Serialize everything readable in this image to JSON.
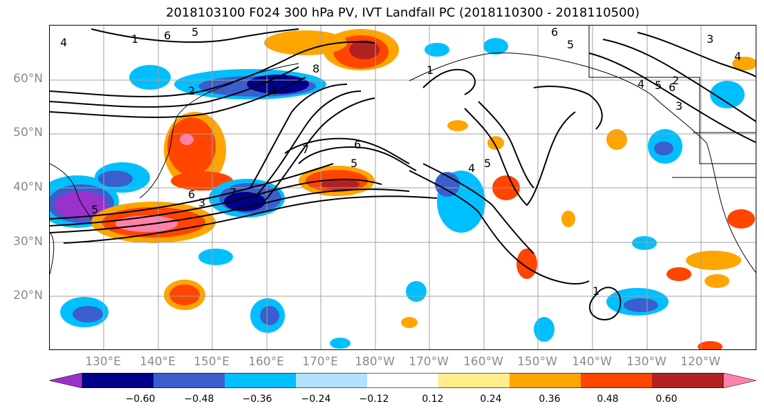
{
  "title": "2018103100 F024 300 hPa PV, IVT Landfall PC (2018110300 - 2018110500)",
  "lat_labels": [
    "60°N",
    "50°N",
    "40°N",
    "30°N",
    "20°N"
  ],
  "lon_labels": [
    "130°E",
    "140°E",
    "150°E",
    "160°E",
    "170°E",
    "180°W",
    "170°W",
    "160°W",
    "150°W",
    "140°W",
    "130°W",
    "120°W"
  ],
  "colorbar": {
    "ticks": [
      "−0.60",
      "−0.48",
      "−0.36",
      "−0.24",
      "−0.12",
      "0.12",
      "0.24",
      "0.36",
      "0.48",
      "0.60"
    ],
    "colors": [
      "#9932cc",
      "#00008b",
      "#3a5fcd",
      "#00bfff",
      "#b0e2ff",
      "#ffffff",
      "#ffec8b",
      "#ffa500",
      "#ff4500",
      "#b22222",
      "#ff82ab"
    ]
  },
  "contour_labels": [
    "1",
    "6",
    "5",
    "8",
    "7",
    "6",
    "5",
    "4",
    "5",
    "6",
    "7",
    "6",
    "5",
    "4",
    "3",
    "6",
    "5",
    "4",
    "3",
    "2",
    "1",
    "4",
    "5",
    "1",
    "2",
    "3",
    "4"
  ]
}
